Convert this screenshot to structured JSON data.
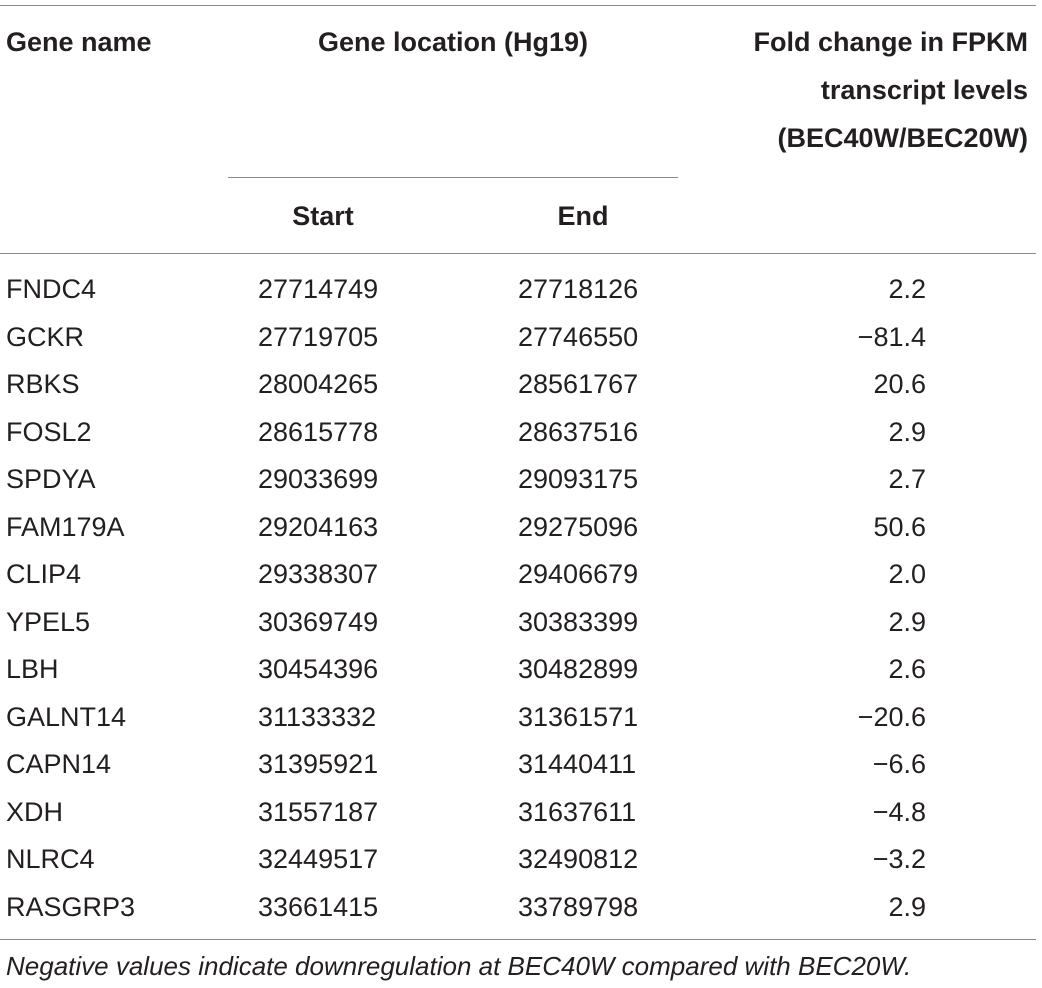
{
  "table": {
    "headers": {
      "gene_name": "Gene name",
      "gene_location": "Gene location (Hg19)",
      "start": "Start",
      "end": "End",
      "fold_change": [
        "Fold change in FPKM",
        "transcript levels",
        "(BEC40W/BEC20W)"
      ]
    },
    "rows": [
      {
        "gene": "FNDC4",
        "start": "27714749",
        "end": "27718126",
        "fold": "2.2"
      },
      {
        "gene": "GCKR",
        "start": "27719705",
        "end": "27746550",
        "fold": "−81.4"
      },
      {
        "gene": "RBKS",
        "start": "28004265",
        "end": "28561767",
        "fold": "20.6"
      },
      {
        "gene": "FOSL2",
        "start": "28615778",
        "end": "28637516",
        "fold": "2.9"
      },
      {
        "gene": "SPDYA",
        "start": "29033699",
        "end": "29093175",
        "fold": "2.7"
      },
      {
        "gene": "FAM179A",
        "start": "29204163",
        "end": "29275096",
        "fold": "50.6"
      },
      {
        "gene": "CLIP4",
        "start": "29338307",
        "end": "29406679",
        "fold": "2.0"
      },
      {
        "gene": "YPEL5",
        "start": "30369749",
        "end": "30383399",
        "fold": "2.9"
      },
      {
        "gene": "LBH",
        "start": "30454396",
        "end": "30482899",
        "fold": "2.6"
      },
      {
        "gene": "GALNT14",
        "start": "31133332",
        "end": "31361571",
        "fold": "−20.6"
      },
      {
        "gene": "CAPN14",
        "start": "31395921",
        "end": "31440411",
        "fold": "−6.6"
      },
      {
        "gene": "XDH",
        "start": "31557187",
        "end": "31637611",
        "fold": "−4.8"
      },
      {
        "gene": "NLRC4",
        "start": "32449517",
        "end": "32490812",
        "fold": "−3.2"
      },
      {
        "gene": "RASGRP3",
        "start": "33661415",
        "end": "33789798",
        "fold": "2.9"
      }
    ],
    "footnote": "Negative values indicate downregulation at BEC40W compared with BEC20W."
  }
}
